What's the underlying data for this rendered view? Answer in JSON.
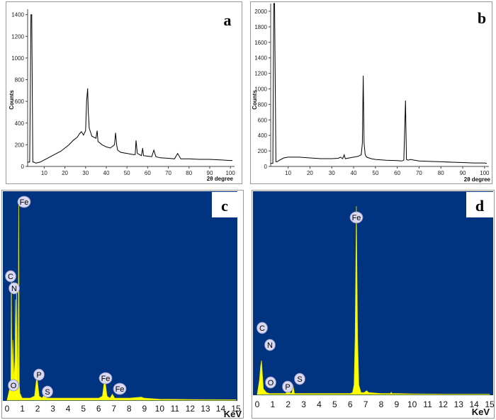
{
  "chart_data": [
    {
      "panel": "a",
      "type": "line",
      "ylabel": "Counts",
      "xlabel": "2θ degree",
      "xlim": [
        2,
        102
      ],
      "ylim": [
        0,
        1450
      ],
      "xticks": [
        10,
        20,
        30,
        40,
        50,
        60,
        70,
        80,
        90,
        100
      ],
      "yticks": [
        0,
        200,
        400,
        600,
        800,
        1000,
        1200,
        1400
      ],
      "series": [
        {
          "x": [
            2,
            3,
            3.6,
            4,
            4.5,
            5,
            6,
            8,
            10,
            12,
            14,
            16,
            18,
            20,
            22,
            24,
            26,
            27,
            28,
            29,
            30,
            30.5,
            31,
            31.3,
            31.8,
            32.5,
            33,
            34,
            35,
            35.6,
            36,
            38,
            40,
            42,
            44,
            44.5,
            45,
            45.5,
            47,
            50,
            53,
            54,
            54.4,
            55,
            56,
            57,
            57.6,
            58,
            60,
            62,
            63,
            64,
            66,
            70,
            73,
            74.5,
            76,
            80,
            85,
            90,
            95,
            100,
            101
          ],
          "y": [
            40,
            40,
            1400,
            1400,
            40,
            40,
            30,
            40,
            60,
            80,
            100,
            120,
            140,
            170,
            200,
            240,
            270,
            300,
            320,
            290,
            330,
            600,
            720,
            500,
            350,
            310,
            280,
            270,
            260,
            330,
            230,
            200,
            180,
            170,
            200,
            310,
            200,
            150,
            130,
            120,
            110,
            110,
            240,
            120,
            110,
            100,
            170,
            100,
            95,
            90,
            150,
            90,
            80,
            75,
            70,
            120,
            70,
            70,
            65,
            65,
            60,
            55,
            55
          ]
        }
      ]
    },
    {
      "panel": "b",
      "type": "line",
      "ylabel": "Counts",
      "xlabel": "2θ degree",
      "xlim": [
        2,
        102
      ],
      "ylim": [
        0,
        2100
      ],
      "xticks": [
        10,
        20,
        30,
        40,
        50,
        60,
        70,
        80,
        90,
        100
      ],
      "yticks": [
        0,
        200,
        400,
        600,
        800,
        1000,
        1200,
        1400,
        1600,
        1800,
        2000
      ],
      "series": [
        {
          "x": [
            2,
            3,
            3.4,
            3.8,
            4.4,
            5,
            6,
            8,
            10,
            15,
            20,
            25,
            30,
            33,
            34,
            35,
            35.7,
            36.2,
            38,
            40,
            42,
            43.5,
            44,
            44.4,
            44.8,
            45.3,
            46,
            48,
            50,
            55,
            60,
            62,
            63,
            63.8,
            64.2,
            65,
            66,
            68,
            70,
            75,
            80,
            85,
            90,
            95,
            100,
            101
          ],
          "y": [
            40,
            40,
            2100,
            2100,
            60,
            60,
            80,
            110,
            120,
            120,
            110,
            100,
            100,
            105,
            120,
            100,
            150,
            100,
            110,
            120,
            130,
            150,
            300,
            1170,
            300,
            150,
            120,
            100,
            90,
            80,
            75,
            70,
            80,
            850,
            90,
            80,
            90,
            80,
            70,
            65,
            60,
            55,
            50,
            45,
            45,
            40
          ]
        }
      ]
    },
    {
      "panel": "c",
      "type": "line",
      "xlabel": "KeV",
      "xlim": [
        0,
        15
      ],
      "xticks": [
        0,
        1,
        2,
        3,
        4,
        5,
        6,
        7,
        8,
        9,
        10,
        11,
        12,
        13,
        14,
        15
      ],
      "series": [
        {
          "x": [
            0,
            0.15,
            0.25,
            0.28,
            0.32,
            0.38,
            0.45,
            0.52,
            0.55,
            0.58,
            0.62,
            0.7,
            0.72,
            0.76,
            0.8,
            0.84,
            0.88,
            0.92,
            1.0,
            1.5,
            1.8,
            1.95,
            2.1,
            2.3,
            2.45,
            2.6,
            2.8,
            4,
            5,
            6,
            6.25,
            6.4,
            6.55,
            6.75,
            6.9,
            7.05,
            7.2,
            8,
            8.8,
            9,
            10,
            12,
            15
          ],
          "y": [
            0,
            5,
            10,
            64,
            10,
            30,
            10,
            20,
            50,
            20,
            55,
            5,
            8,
            100,
            8,
            3,
            3,
            2,
            1,
            1,
            2,
            12,
            2,
            1,
            3,
            1,
            1,
            1,
            1,
            1,
            2,
            11,
            2,
            1,
            3,
            1,
            1,
            1,
            1.5,
            1,
            0.5,
            0.3,
            0.2
          ]
        }
      ],
      "peak_labels": [
        {
          "label": "C",
          "energy": 0.28
        },
        {
          "label": "N",
          "energy": 0.39
        },
        {
          "label": "O",
          "energy": 0.52
        },
        {
          "label": "Fe",
          "energy": 0.71
        },
        {
          "label": "P",
          "energy": 2.01
        },
        {
          "label": "S",
          "energy": 2.31
        },
        {
          "label": "Fe",
          "energy": 6.4
        },
        {
          "label": "Fe",
          "energy": 7.06
        }
      ]
    },
    {
      "panel": "d",
      "type": "line",
      "xlabel": "KeV",
      "xlim": [
        0,
        15
      ],
      "xticks": [
        0,
        1,
        2,
        3,
        4,
        5,
        6,
        7,
        8,
        9,
        10,
        11,
        12,
        13,
        14,
        15
      ],
      "series": [
        {
          "x": [
            0,
            0.15,
            0.22,
            0.28,
            0.34,
            0.4,
            0.5,
            0.6,
            0.8,
            1,
            1.5,
            1.85,
            2.01,
            2.15,
            2.25,
            2.31,
            2.4,
            2.7,
            4,
            5,
            6,
            6.15,
            6.25,
            6.32,
            6.4,
            6.48,
            6.56,
            6.7,
            6.9,
            7.06,
            7.2,
            8,
            8.6,
            8.65,
            8.7,
            9,
            10,
            12,
            15
          ],
          "y": [
            0,
            8,
            15,
            18,
            10,
            3,
            2,
            1,
            0.5,
            0.5,
            0.5,
            0.5,
            4,
            0.5,
            1,
            5,
            0.5,
            0.5,
            0.5,
            0.5,
            0.5,
            1,
            5,
            30,
            100,
            30,
            5,
            1,
            1,
            2,
            1,
            0.5,
            0.5,
            1.2,
            0.5,
            0.5,
            0.3,
            0.2,
            0.2
          ]
        }
      ],
      "peak_labels": [
        {
          "label": "C",
          "energy": 0.28
        },
        {
          "label": "N",
          "energy": 0.39
        },
        {
          "label": "O",
          "energy": 0.52
        },
        {
          "label": "P",
          "energy": 2.01
        },
        {
          "label": "S",
          "energy": 2.31
        },
        {
          "label": "Fe",
          "energy": 6.4
        }
      ]
    }
  ]
}
